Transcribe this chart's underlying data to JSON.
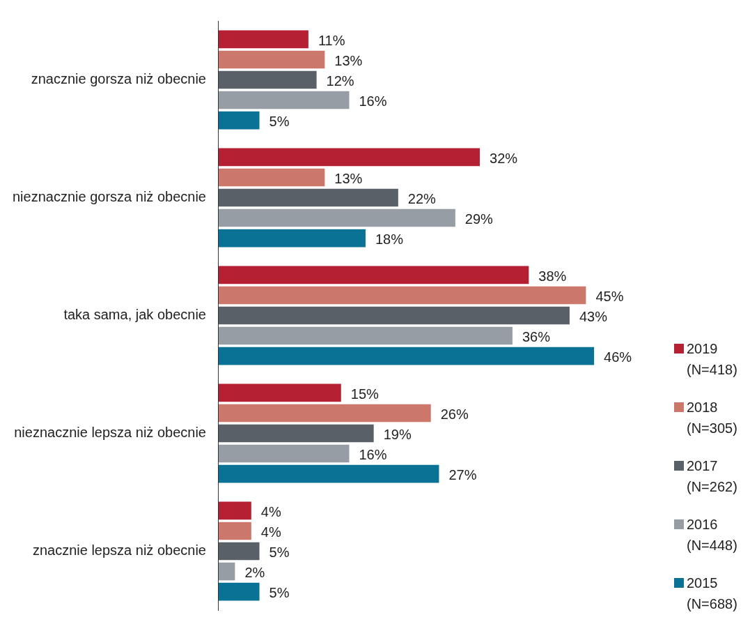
{
  "chart_data": {
    "type": "bar",
    "orientation": "horizontal",
    "categories": [
      "znacznie gorsza niż obecnie",
      "nieznacznie gorsza niż obecnie",
      "taka sama, jak obecnie",
      "nieznacznie lepsza niż obecnie",
      "znacznie lepsza niż obecnie"
    ],
    "series": [
      {
        "name": "2019 (N=418)",
        "color": "#b52032",
        "values": [
          11,
          32,
          38,
          15,
          4
        ],
        "value_labels": [
          "11%",
          "32%",
          "38%",
          "15%",
          "4%"
        ]
      },
      {
        "name": "2018 (N=305)",
        "color": "#cc776c",
        "values": [
          13,
          13,
          45,
          26,
          4
        ],
        "value_labels": [
          "13%",
          "13%",
          "45%",
          "26%",
          "4%"
        ]
      },
      {
        "name": "2017 (N=262)",
        "color": "#5a6068",
        "values": [
          12,
          22,
          43,
          19,
          5
        ],
        "value_labels": [
          "12%",
          "22%",
          "43%",
          "19%",
          "5%"
        ]
      },
      {
        "name": "2016 (N=448)",
        "color": "#979da4",
        "values": [
          16,
          29,
          36,
          16,
          2
        ],
        "value_labels": [
          "16%",
          "29%",
          "36%",
          "16%",
          "2%"
        ]
      },
      {
        "name": "2015 (N=688)",
        "color": "#0a7395",
        "values": [
          5,
          18,
          46,
          27,
          5
        ],
        "value_labels": [
          "5%",
          "18%",
          "46%",
          "27%",
          "5%"
        ]
      }
    ],
    "tick_labels": "y",
    "grid": false,
    "legend": "bottom right"
  }
}
